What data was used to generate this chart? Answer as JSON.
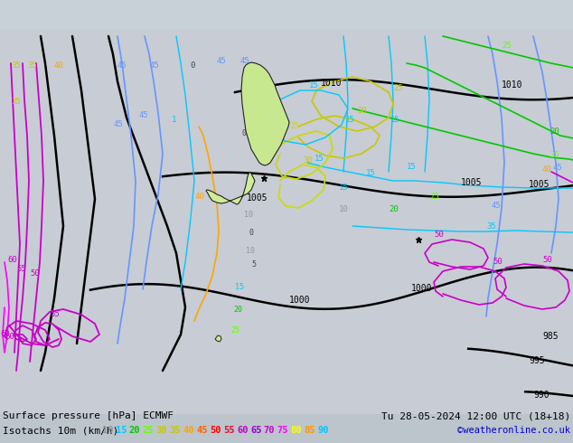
{
  "title_line1": "Surface pressure [hPa] ECMWF",
  "title_line2": "Isotachs 10m (km/h)",
  "date_str": "Tu 28-05-2024 12:00 UTC (18+18)",
  "credit": "©weatheronline.co.uk",
  "bg_color": "#c8d0d8",
  "legend_values": [
    10,
    15,
    20,
    25,
    30,
    35,
    40,
    45,
    50,
    55,
    60,
    65,
    70,
    75,
    80,
    85,
    90
  ],
  "legend_colors": [
    "#969696",
    "#00c8ff",
    "#00c800",
    "#64ff00",
    "#c8c800",
    "#c8c800",
    "#ffa500",
    "#ff6400",
    "#ff0000",
    "#dc143c",
    "#c800c8",
    "#9600c8",
    "#6400c8",
    "#3200c8",
    "#0000c8",
    "#0064ff",
    "#00c8ff"
  ],
  "isotach_colors": {
    "10": "#969696",
    "15": "#00c8ff",
    "20": "#00c800",
    "25": "#64ff00",
    "30": "#c8c800",
    "35": "#c8c800",
    "40": "#ffa500",
    "45": "#6496ff",
    "50": "#c800c8",
    "55": "#c800c8",
    "60": "#c800c8",
    "65": "#c800c8",
    "70": "#c800c8",
    "75": "#ff00ff",
    "80": "#ff00ff",
    "85": "#ffff00",
    "90": "#00c8ff"
  }
}
